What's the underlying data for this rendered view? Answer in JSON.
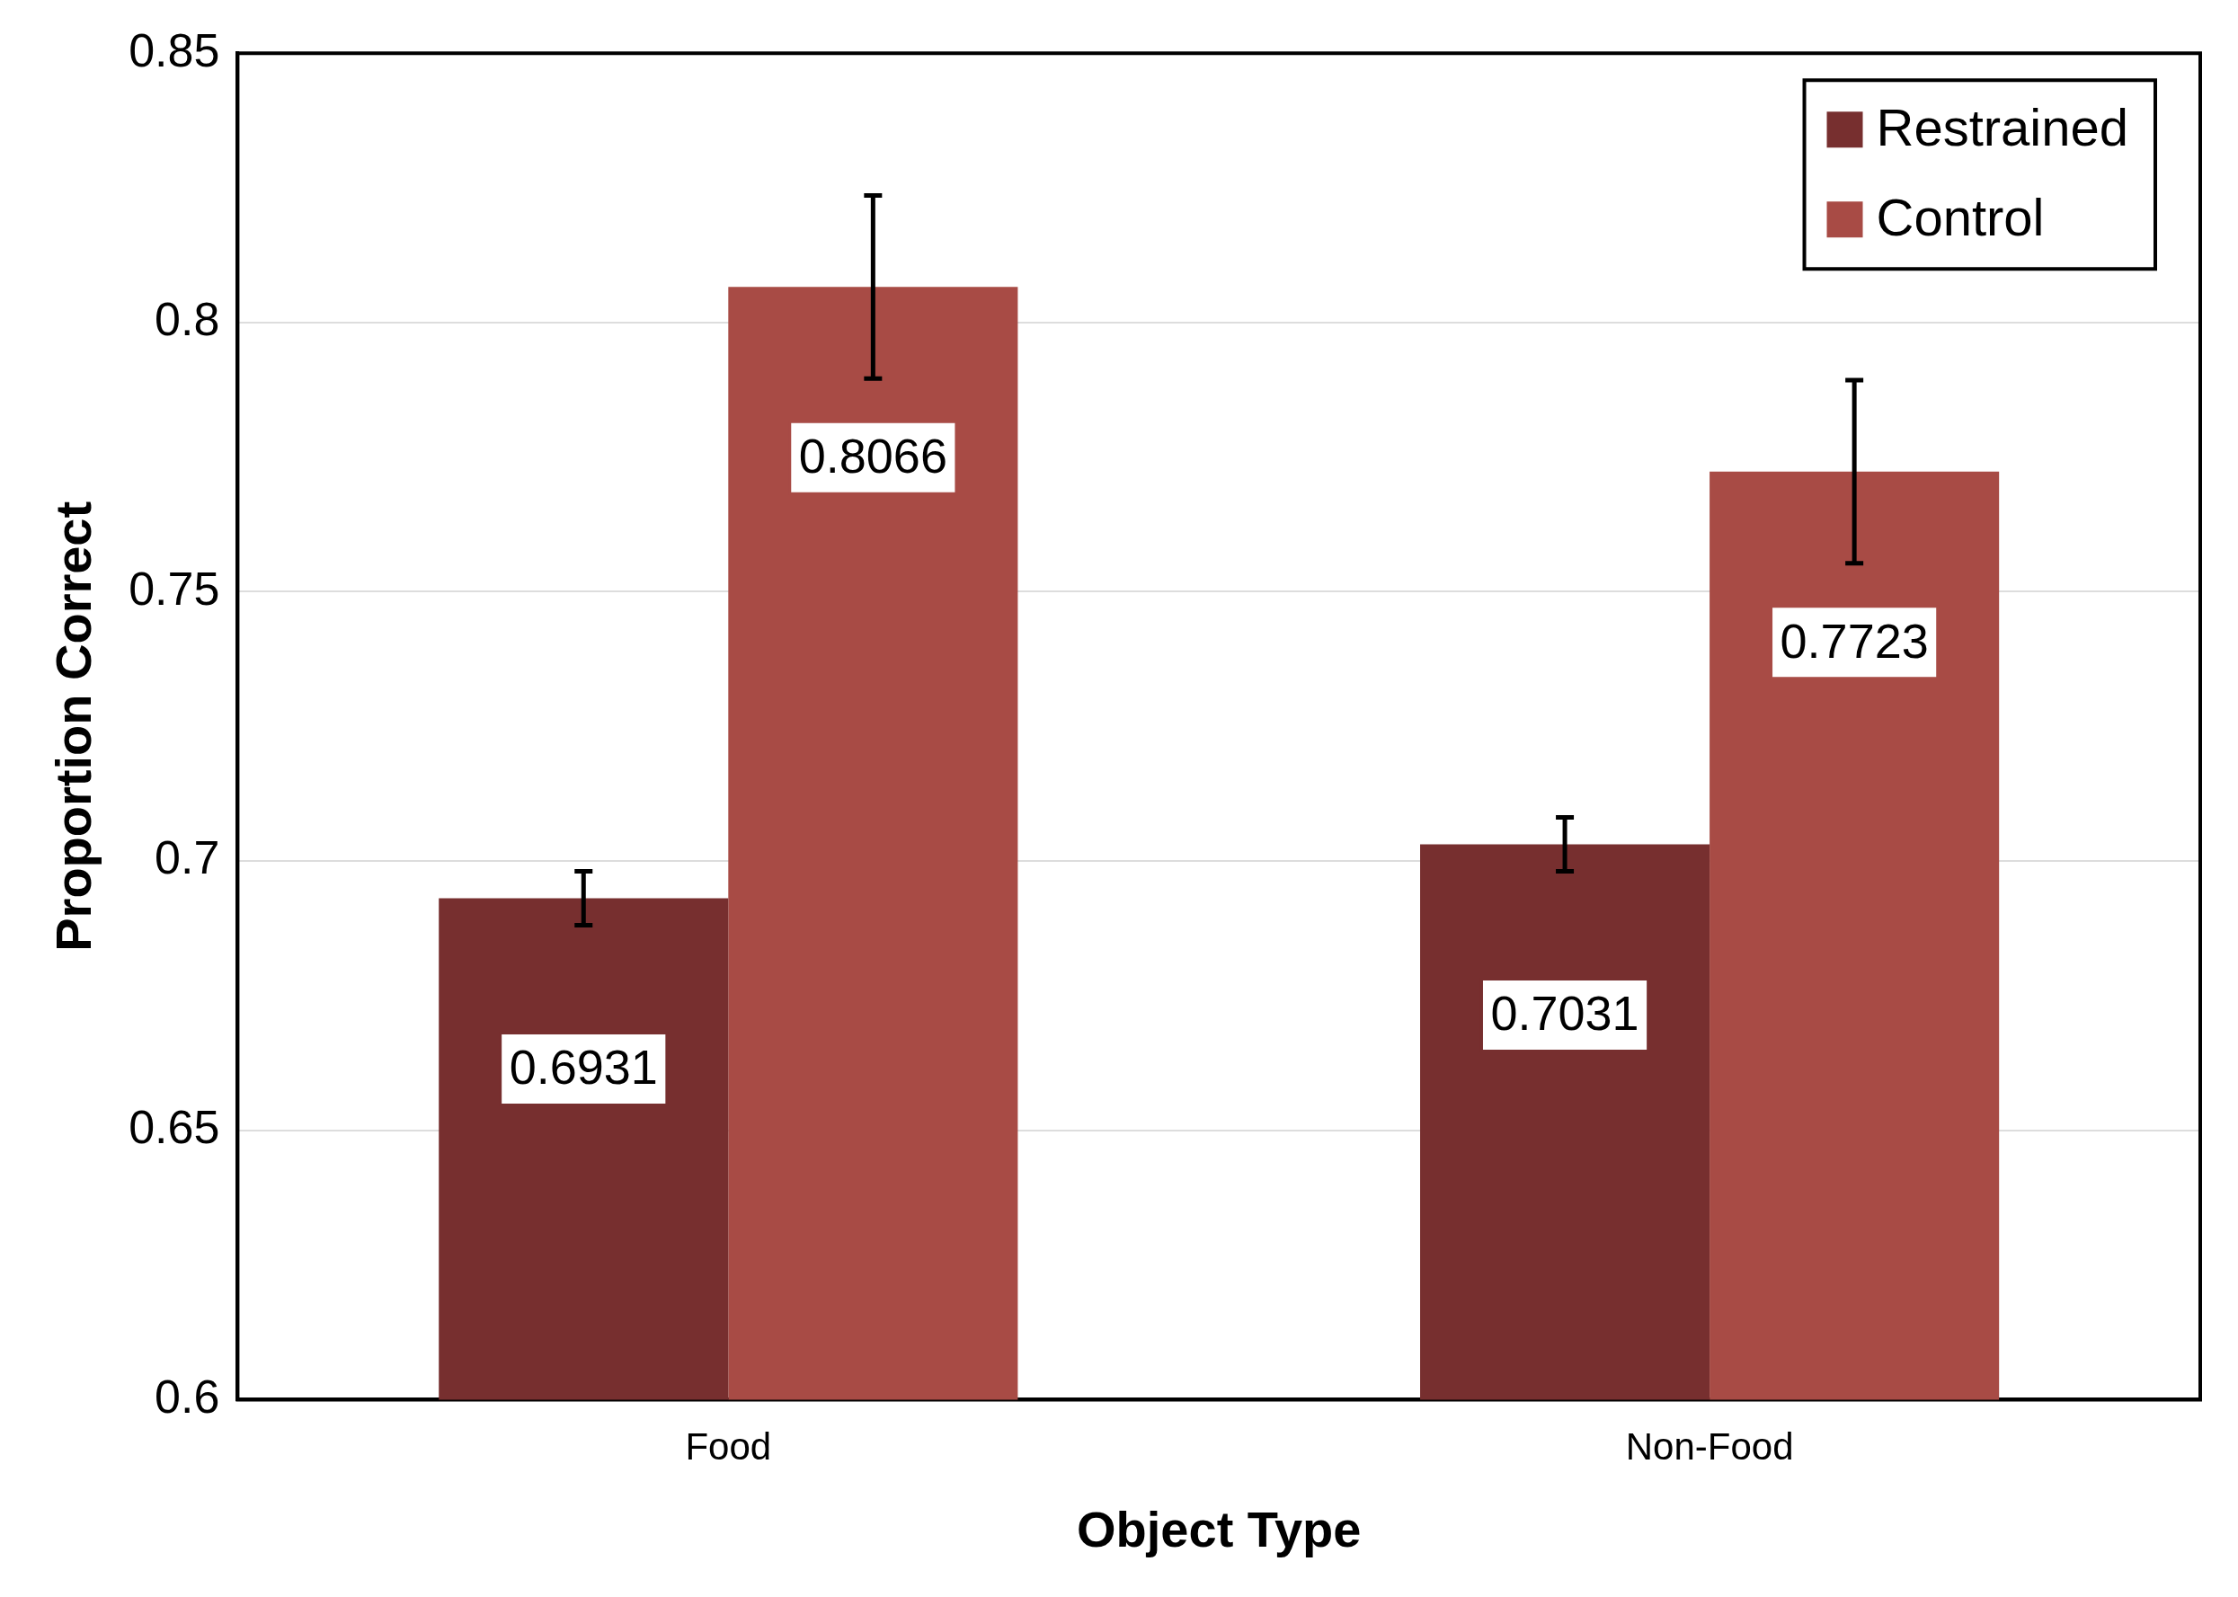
{
  "chart_data": {
    "type": "bar",
    "xlabel": "Object Type",
    "ylabel": "Proportion Correct",
    "categories": [
      "Food",
      "Non-Food"
    ],
    "series": [
      {
        "name": "Restrained",
        "color": "#772f2f",
        "values": [
          0.6931,
          0.7031
        ],
        "errors": [
          0.005,
          0.005
        ]
      },
      {
        "name": "Control",
        "color": "#a84b45",
        "values": [
          0.8066,
          0.7723
        ],
        "errors": [
          0.017,
          0.017
        ]
      }
    ],
    "ylim": [
      0.6,
      0.85
    ],
    "yticks": [
      0.6,
      0.65,
      0.7,
      0.75,
      0.8,
      0.85
    ],
    "grid": "y",
    "legend": "top right",
    "data_labels": true
  }
}
